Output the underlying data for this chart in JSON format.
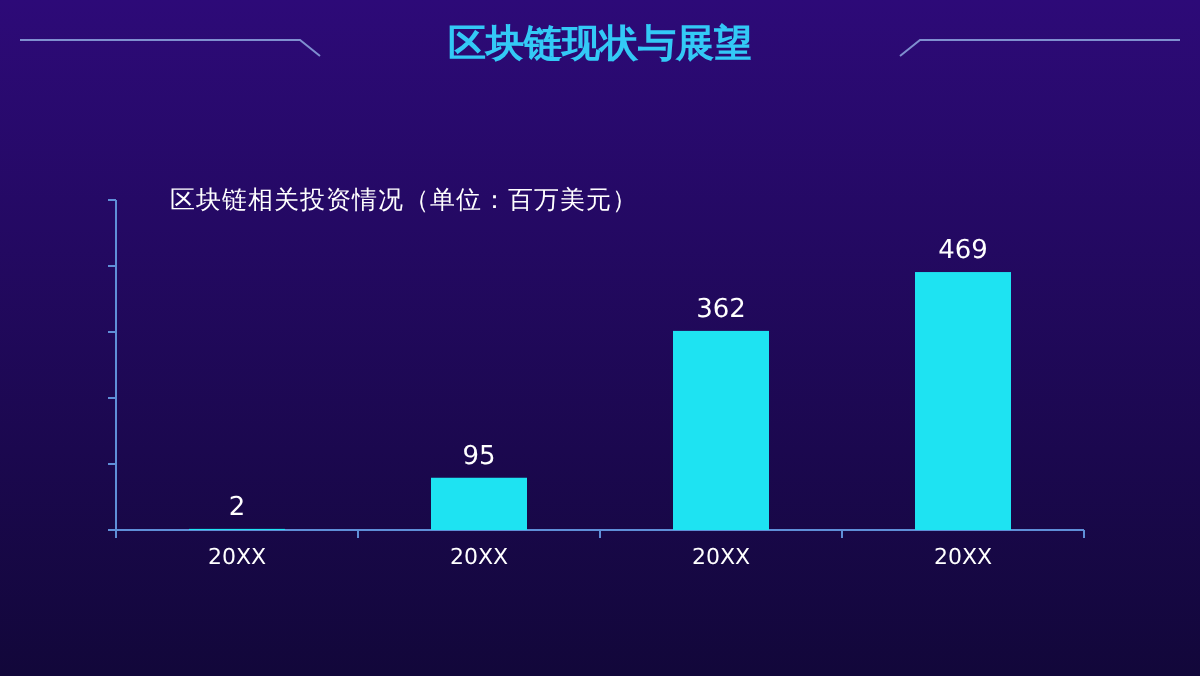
{
  "chart_data": {
    "type": "bar",
    "title": "区块链现状与展望",
    "subtitle": "区块链相关投资情况（单位：百万美元）",
    "categories": [
      "20XX",
      "20XX",
      "20XX",
      "20XX"
    ],
    "values": [
      2,
      95,
      362,
      469
    ],
    "color": "#1ee3f2",
    "ylim": [
      0,
      600
    ],
    "yticks": [
      {
        "value": 0,
        "label": null
      },
      {
        "value": 120,
        "label": null
      },
      {
        "value": 240,
        "label": null
      },
      {
        "value": 360,
        "label": null
      },
      {
        "value": 480,
        "label": null
      },
      {
        "value": 600,
        "label": null
      }
    ],
    "data_labels": true
  }
}
